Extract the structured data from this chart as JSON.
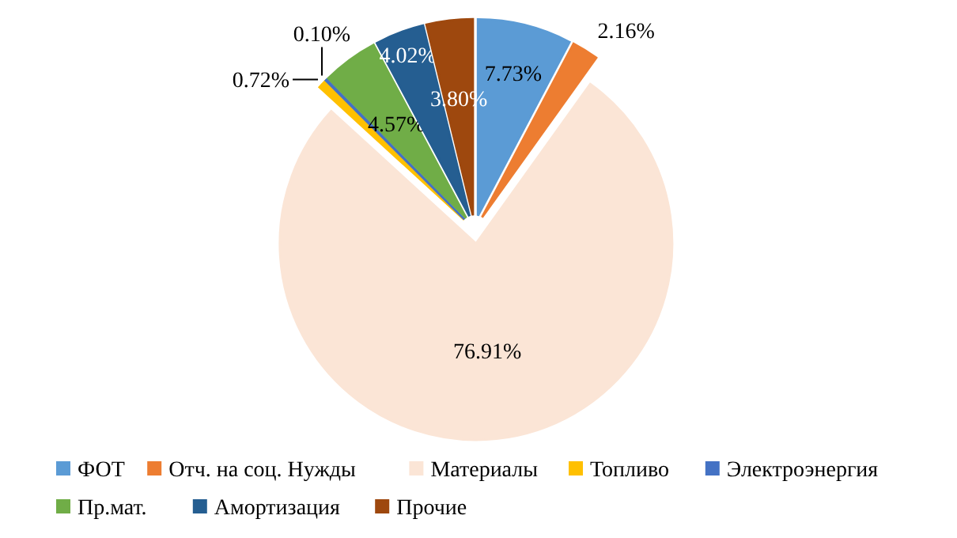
{
  "chart_data": {
    "type": "pie",
    "categories": [
      "ФОТ",
      "Отч. на соц. Нужды",
      "Материалы",
      "Топливо",
      "Электроэнергия",
      "Пр.мат.",
      "Амортизация",
      "Прочие"
    ],
    "values": [
      7.73,
      2.16,
      76.91,
      0.72,
      0.1,
      4.57,
      4.02,
      3.8
    ],
    "colors": [
      "#5b9bd5",
      "#ed7d31",
      "#fbe5d6",
      "#ffc000",
      "#4472c4",
      "#70ad47",
      "#255e91",
      "#9e480e"
    ],
    "value_labels": [
      "7.73%",
      "2.16%",
      "76.91%",
      "0.72%",
      "0.10%",
      "4.57%",
      "4.02%",
      "3.80%"
    ],
    "legend": "bottom"
  }
}
